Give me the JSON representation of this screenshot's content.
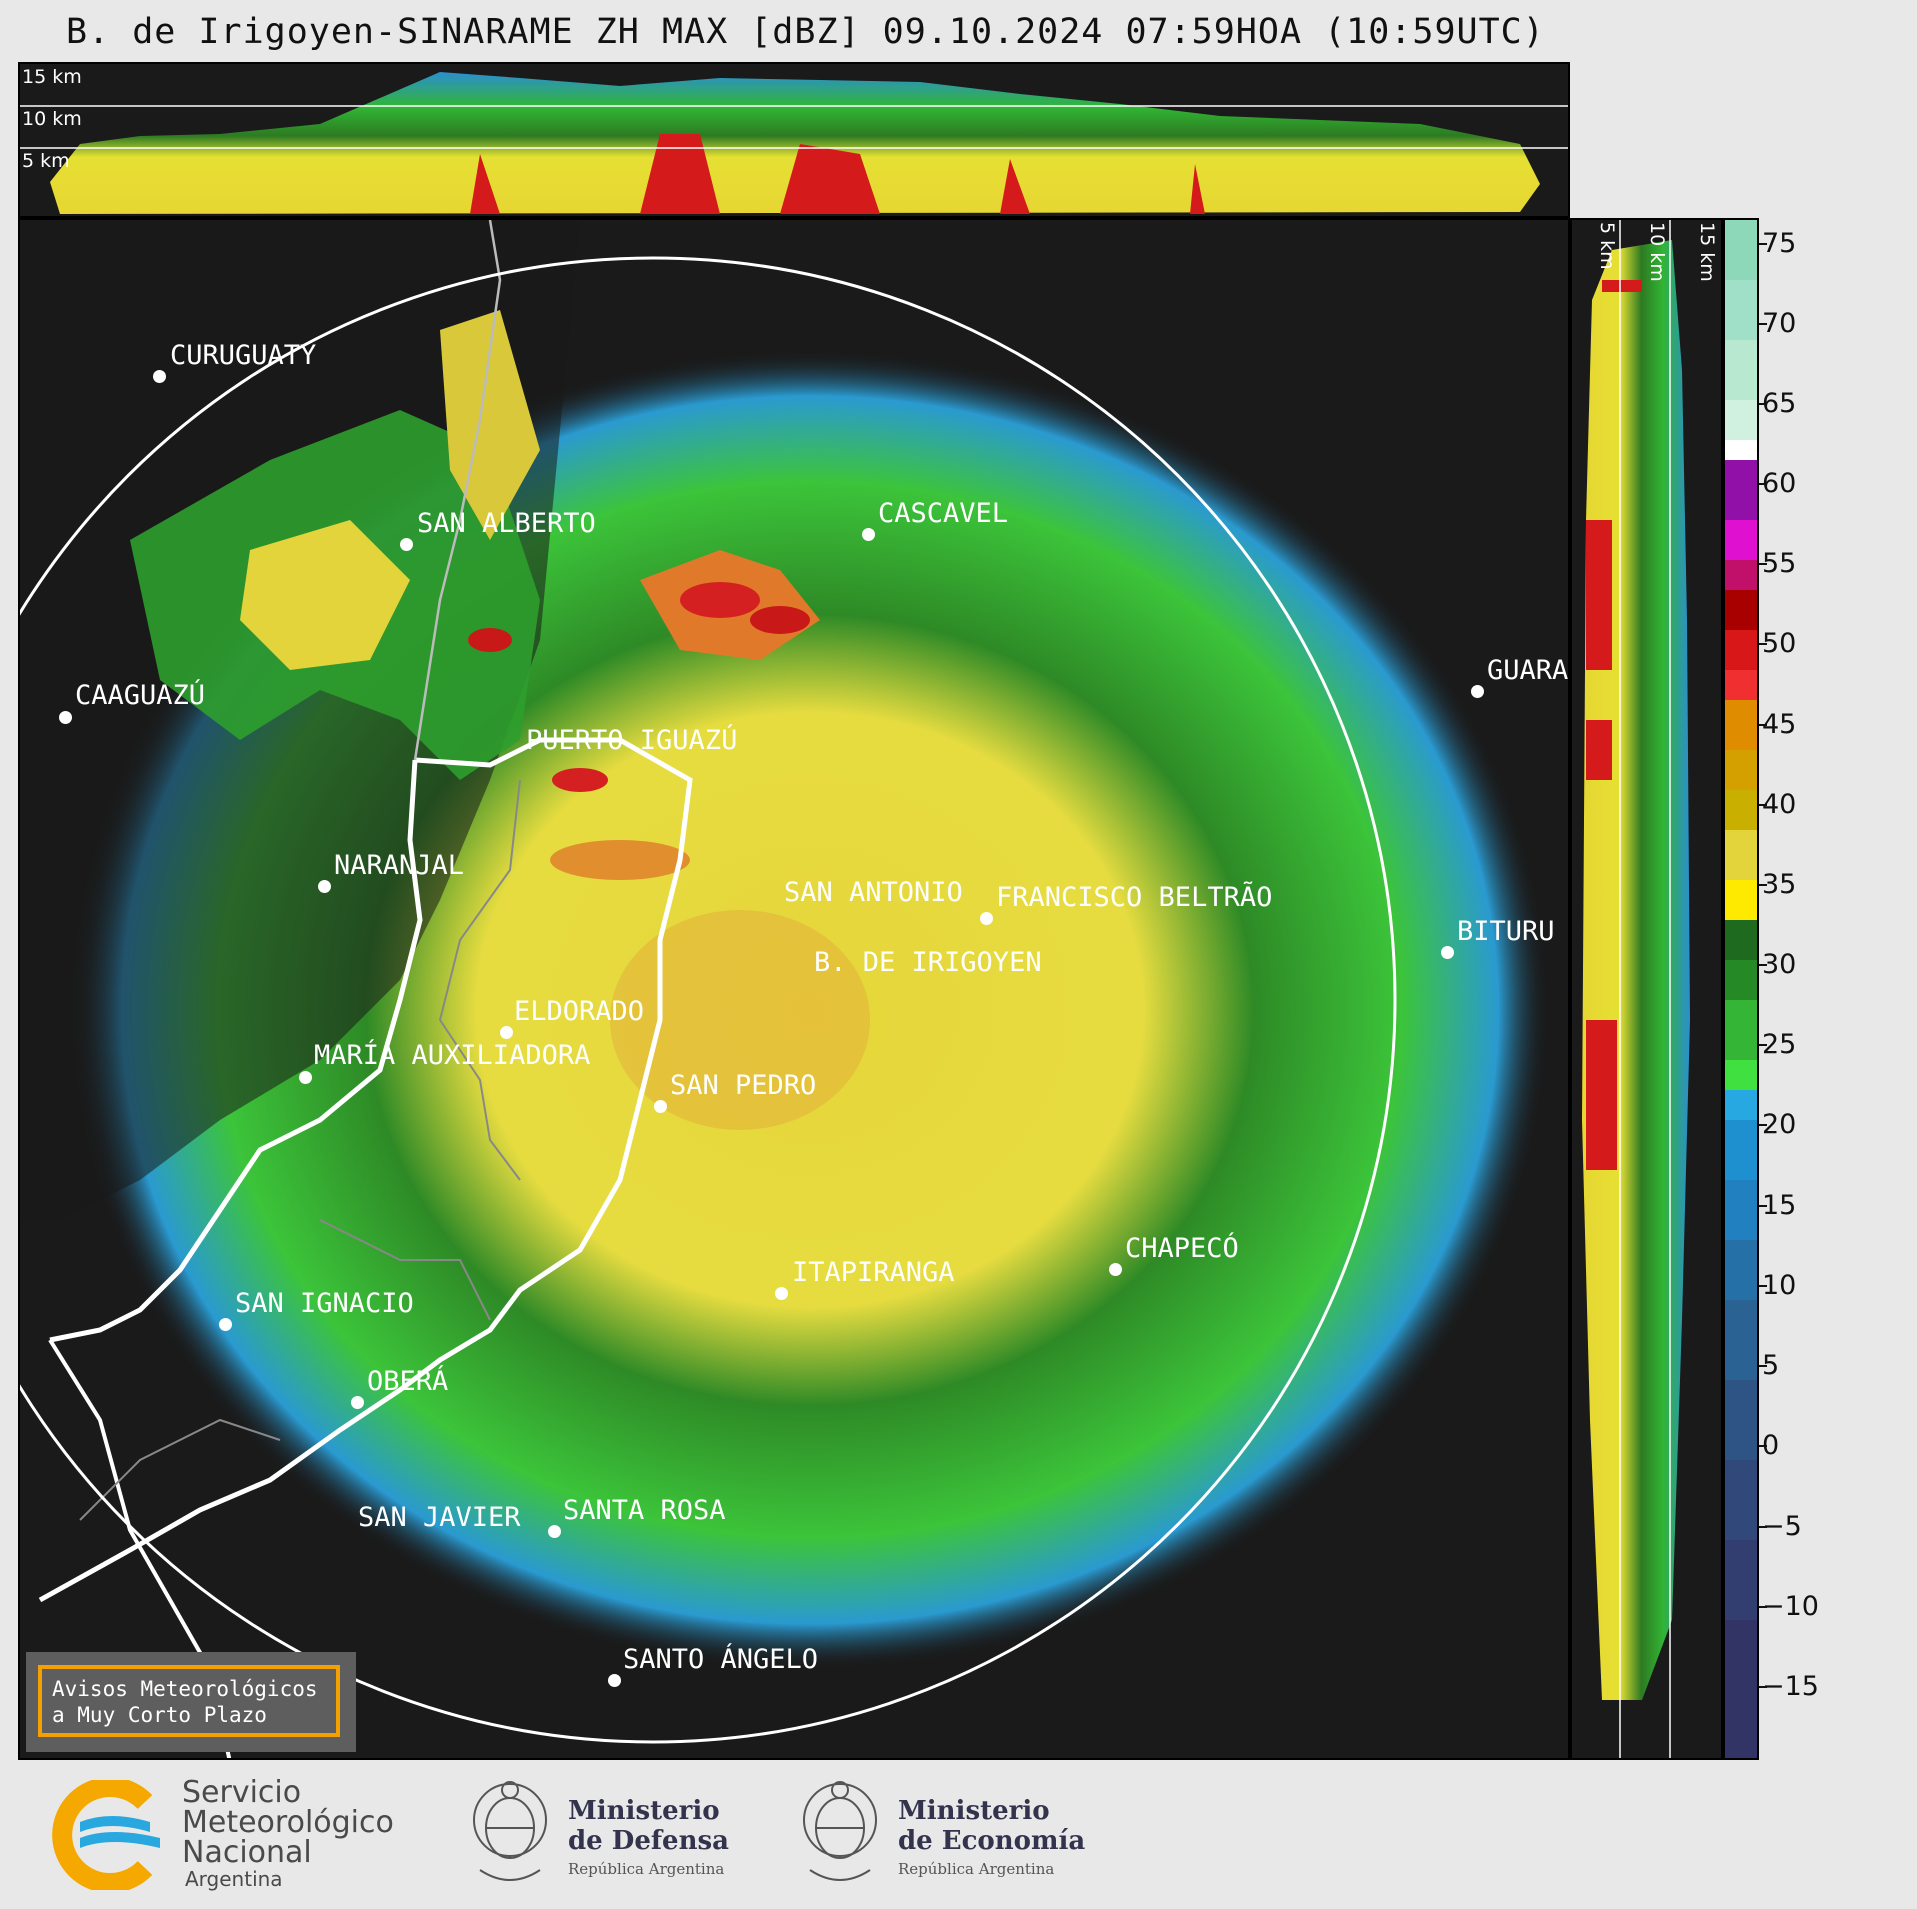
{
  "header": {
    "title": "B. de Irigoyen-SINARAME ZH MAX [dBZ] 09.10.2024 07:59HOA (10:59UTC)"
  },
  "top_panel": {
    "height_labels": [
      "15 km",
      "10 km",
      "5 km"
    ]
  },
  "side_panel": {
    "height_labels": [
      "5 km",
      "10 km",
      "15 km"
    ]
  },
  "colorbar": {
    "unit": "dBZ",
    "ticks": [
      "75",
      "70",
      "65",
      "60",
      "55",
      "50",
      "45",
      "40",
      "35",
      "30",
      "25",
      "20",
      "15",
      "10",
      "5",
      "0",
      "−5",
      "−10",
      "−15"
    ],
    "colors": [
      "#fee900",
      "#ffff66",
      "#f0d000",
      "#e2bb00",
      "#c9a800",
      "#d4a000",
      "#e08c00",
      "#e86e00",
      "#f03000",
      "#e01020",
      "#cc0000",
      "#a80000",
      "#c0106a",
      "#e010d0",
      "#c018c8",
      "#9010a8",
      "#ffffff",
      "#e8f8f0",
      "#d0f0e0",
      "#b8e8d0",
      "#a0e0c8",
      "#8cd8b8"
    ]
  },
  "map": {
    "cities": [
      {
        "name": "CURUGUATY"
      },
      {
        "name": "SAN ALBERTO"
      },
      {
        "name": "CAAGUAZÚ"
      },
      {
        "name": "CASCAVEL"
      },
      {
        "name": "GUARA"
      },
      {
        "name": "PUERTO IGUAZÚ"
      },
      {
        "name": "NARANJAL"
      },
      {
        "name": "SAN ANTONIO"
      },
      {
        "name": "FRANCISCO BELTRÃO"
      },
      {
        "name": "BITURU"
      },
      {
        "name": "B. DE IRIGOYEN"
      },
      {
        "name": "ELDORADO"
      },
      {
        "name": "MARÍA AUXILIADORA"
      },
      {
        "name": "SAN PEDRO"
      },
      {
        "name": "CHAPECÓ"
      },
      {
        "name": "ITAPIRANGA"
      },
      {
        "name": "SAN IGNACIO"
      },
      {
        "name": "OBERÁ"
      },
      {
        "name": "SAN JAVIER"
      },
      {
        "name": "SANTA ROSA"
      },
      {
        "name": "SANTO ÁNGELO"
      }
    ]
  },
  "warning": {
    "line1": "Avisos Meteorológicos",
    "line2": "a Muy Corto Plazo"
  },
  "footer": {
    "smn": {
      "line1": "Servicio",
      "line2": "Meteorológico",
      "line3": "Nacional",
      "line4": "Argentina"
    },
    "defensa": {
      "line1": "Ministerio",
      "line2": "de Defensa",
      "line3": "República Argentina"
    },
    "economia": {
      "line1": "Ministerio",
      "line2": "de Economía",
      "line3": "República Argentina"
    }
  }
}
